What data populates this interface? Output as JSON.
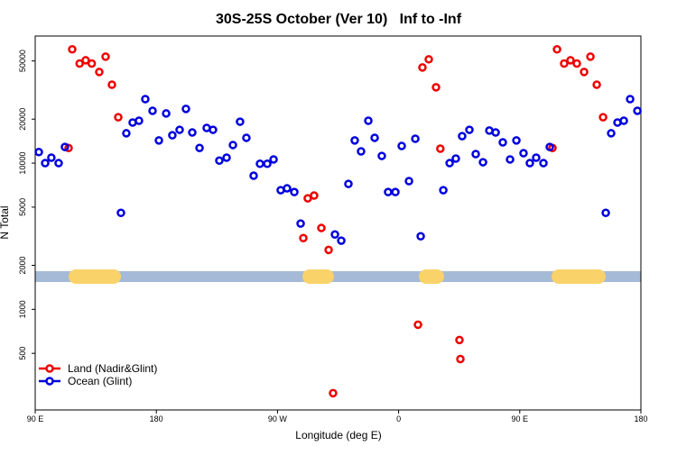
{
  "chart_data": {
    "type": "scatter",
    "title": "30S-25S October (Ver 10)   Inf to -Inf",
    "x_label": "Longitude (deg E)",
    "y_label": "N Total",
    "y_log": true,
    "xlim": [
      90,
      540
    ],
    "ylim": [
      205,
      74000
    ],
    "xticks": [
      {
        "value": 90,
        "label": "90 E"
      },
      180,
      {
        "value": 270,
        "label": "90 W"
      },
      {
        "value": 360,
        "label": "0"
      },
      {
        "value": 450,
        "label": "90 E"
      },
      {
        "value": 540,
        "label": "180"
      }
    ],
    "yticks": [
      500,
      1000,
      2000,
      5000,
      10000,
      20000,
      50000
    ],
    "legend": "bottom-left",
    "series": [
      {
        "name": "Land (Nadir&Glint)",
        "color": "#ee0000",
        "x": [
          114.8,
          117.5,
          123,
          127.5,
          132,
          137.6,
          142.3,
          147,
          151.7,
          289.2,
          292.5,
          297.2,
          302.6,
          308,
          311.3,
          374.4,
          377.7,
          382.4,
          387.8,
          391,
          405.2,
          405.9,
          474.3,
          477.7,
          483,
          487.7,
          492.4,
          497.8,
          502.5,
          507.2,
          511.9
        ],
        "values": [
          12700,
          60000,
          48000,
          50500,
          48000,
          42000,
          53500,
          34400,
          20600,
          3070,
          5740,
          6000,
          3600,
          2550,
          267,
          785,
          45100,
          51300,
          33000,
          12550,
          617,
          457,
          12700,
          60000,
          48000,
          50500,
          48000,
          42000,
          53500,
          34400,
          20600
        ]
      },
      {
        "name": "Ocean (Glint)",
        "color": "#0000dd",
        "x": [
          92.7,
          97.4,
          102,
          107.4,
          112.1,
          153.7,
          157.7,
          162.4,
          167.1,
          171.8,
          177.2,
          181.9,
          187.3,
          191.9,
          197.3,
          202,
          206.7,
          212.1,
          217.4,
          222.1,
          226.8,
          232.2,
          236.9,
          242.2,
          246.9,
          252.3,
          257,
          262.4,
          267.1,
          272.4,
          277.1,
          282.5,
          287.2,
          312.7,
          317.4,
          322.7,
          327.4,
          332.1,
          337.5,
          342.2,
          347.5,
          352.2,
          357.6,
          362.3,
          367.7,
          372.4,
          376.4,
          393.2,
          397.9,
          402.5,
          407.2,
          412.6,
          417.3,
          422.7,
          427.4,
          432.1,
          437.4,
          442.8,
          447.5,
          452.8,
          457.5,
          462.2,
          467.6,
          472.3,
          513.9,
          517.9,
          522.6,
          527.3,
          532,
          537.4
        ],
        "values": [
          11900,
          10000,
          10900,
          10000,
          12900,
          4570,
          16000,
          18950,
          19500,
          27400,
          22800,
          14300,
          21860,
          15500,
          16900,
          23500,
          16200,
          12700,
          17400,
          16900,
          10400,
          10900,
          13300,
          19200,
          14900,
          8200,
          9900,
          9900,
          10600,
          6530,
          6720,
          6340,
          3860,
          3250,
          2950,
          7210,
          14300,
          12030,
          19500,
          14900,
          11200,
          6340,
          6340,
          13100,
          7530,
          14680,
          3160,
          6530,
          10000,
          10740,
          15300,
          16900,
          11530,
          10140,
          16700,
          16200,
          13870,
          10600,
          14300,
          11690,
          10000,
          10900,
          10000,
          12900,
          4570,
          16000,
          18950,
          19500,
          27400,
          22800
        ]
      }
    ]
  }
}
